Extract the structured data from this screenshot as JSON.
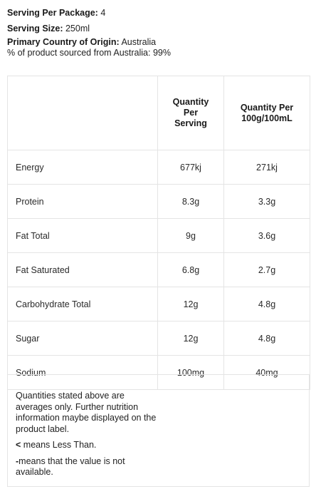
{
  "meta": {
    "serving_per_package_label": "Serving Per Package:",
    "serving_per_package_value": " 4",
    "serving_size_label": "Serving Size:",
    "serving_size_value": " 250ml",
    "country_label": "Primary Country of Origin:",
    "country_value": " Australia",
    "sourced_text": "% of product sourced from Australia: 99%"
  },
  "table": {
    "header_blank": "",
    "col_serving": "Quantity Per Serving",
    "col_per100": "Quantity Per 100g/100mL",
    "rows": [
      {
        "nutrient": "Energy",
        "per_serving": "677kj",
        "per_100": "271kj"
      },
      {
        "nutrient": "Protein",
        "per_serving": "8.3g",
        "per_100": "3.3g"
      },
      {
        "nutrient": "Fat Total",
        "per_serving": "9g",
        "per_100": "3.6g"
      },
      {
        "nutrient": "Fat Saturated",
        "per_serving": "6.8g",
        "per_100": "2.7g"
      },
      {
        "nutrient": "Carbohydrate Total",
        "per_serving": "12g",
        "per_100": "4.8g"
      },
      {
        "nutrient": "Sugar",
        "per_serving": "12g",
        "per_100": "4.8g"
      },
      {
        "nutrient": "Sodium",
        "per_serving": "100mg",
        "per_100": "40mg"
      }
    ]
  },
  "notes": {
    "averages": "Quantities stated above are averages only. Further nutrition information maybe displayed on the product label.",
    "less_than_symbol": "<",
    "less_than_text": " means Less Than.",
    "dash_symbol": "-",
    "dash_text": "means that the value is not available."
  }
}
